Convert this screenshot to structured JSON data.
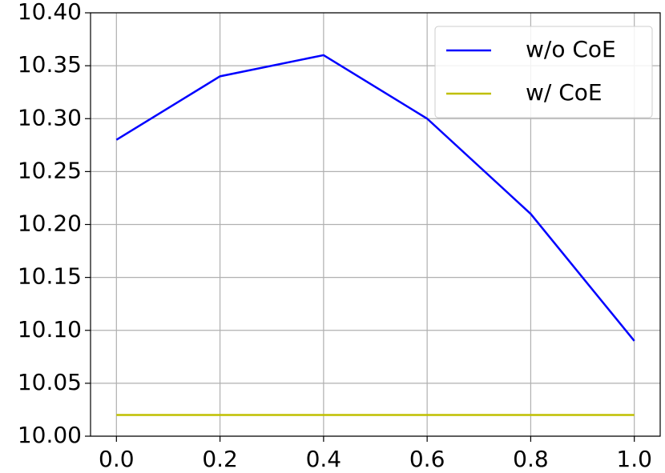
{
  "chart_data": {
    "type": "line",
    "x": [
      0.0,
      0.2,
      0.4,
      0.6,
      0.8,
      1.0
    ],
    "series": [
      {
        "name": "w/o CoE",
        "color": "#0000ff",
        "values": [
          10.28,
          10.34,
          10.36,
          10.3,
          10.21,
          10.09
        ]
      },
      {
        "name": "w/ CoE",
        "color": "#bfbf00",
        "values": [
          10.02,
          10.02,
          10.02,
          10.02,
          10.02,
          10.02
        ]
      }
    ],
    "xlim": [
      -0.05,
      1.05
    ],
    "ylim": [
      10.0,
      10.4
    ],
    "xticks": [
      {
        "value": 0,
        "label": "0.0"
      },
      0.2,
      0.4,
      0.6,
      0.8,
      {
        "value": 1,
        "label": "1.0"
      }
    ],
    "yticks": [
      {
        "value": 10,
        "label": "10.00"
      },
      10.05,
      {
        "value": 10.1,
        "label": "10.10"
      },
      10.15,
      {
        "value": 10.2,
        "label": "10.20"
      },
      10.25,
      {
        "value": 10.3,
        "label": "10.30"
      },
      10.35,
      {
        "value": 10.4,
        "label": "10.40"
      }
    ],
    "grid": true,
    "legend": "upper right"
  }
}
